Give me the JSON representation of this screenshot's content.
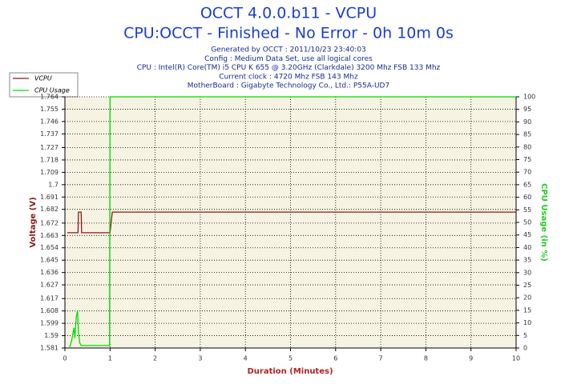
{
  "chart_data": {
    "type": "line",
    "title": "OCCT 4.0.0.b11 - VCPU",
    "subtitle": "CPU:OCCT - Finished - No Error - 0h 10m 0s",
    "info": [
      "Generated by OCCT : 2011/10/23 23:40:03",
      "Config : Medium Data Set, use all logical cores",
      "CPU : Intel(R) Core(TM) i5 CPU K 655 @ 3.20GHz (Clarkdale) 3200 Mhz FSB 133 Mhz",
      "Current clock : 4720 Mhz FSB 143 Mhz",
      "MotherBoard : Gigabyte Technology Co., Ltd.: P55A-UD7"
    ],
    "x_label": "Duration (Minutes)",
    "y_label": "Voltage (V)",
    "y2_label": "CPU Usage (in %)",
    "xlim": [
      0,
      10
    ],
    "xticks": [
      0,
      1,
      2,
      3,
      4,
      5,
      6,
      7,
      8,
      9,
      10
    ],
    "ylim": [
      1.581,
      1.764
    ],
    "yticks": [
      1.581,
      1.59,
      1.599,
      1.608,
      1.617,
      1.627,
      1.636,
      1.645,
      1.654,
      1.663,
      1.672,
      1.682,
      1.691,
      1.7,
      1.709,
      1.718,
      1.727,
      1.737,
      1.746,
      1.755,
      1.764
    ],
    "y2lim": [
      0,
      100
    ],
    "y2ticks": [
      0,
      5,
      10,
      15,
      20,
      25,
      30,
      35,
      40,
      45,
      50,
      55,
      60,
      65,
      70,
      75,
      80,
      85,
      90,
      95,
      100
    ],
    "grid": true,
    "series": [
      {
        "name": "VCPU",
        "color": "#8b1a1a",
        "x": [
          0.05,
          0.29,
          0.3,
          0.36,
          0.37,
          1.0,
          1.05,
          10
        ],
        "values": [
          1.665,
          1.665,
          1.68,
          1.68,
          1.665,
          1.665,
          1.68,
          1.68
        ]
      },
      {
        "name": "CPU Usage",
        "color": "#00dd00",
        "axis": "y2",
        "x": [
          0.1,
          0.15,
          0.2,
          0.22,
          0.25,
          0.28,
          0.3,
          0.33,
          0.36,
          0.5,
          0.8,
          0.99,
          1.0,
          10
        ],
        "values": [
          0,
          3,
          8,
          4,
          12,
          15,
          6,
          2,
          1,
          1,
          1,
          1,
          100,
          100
        ]
      }
    ]
  }
}
